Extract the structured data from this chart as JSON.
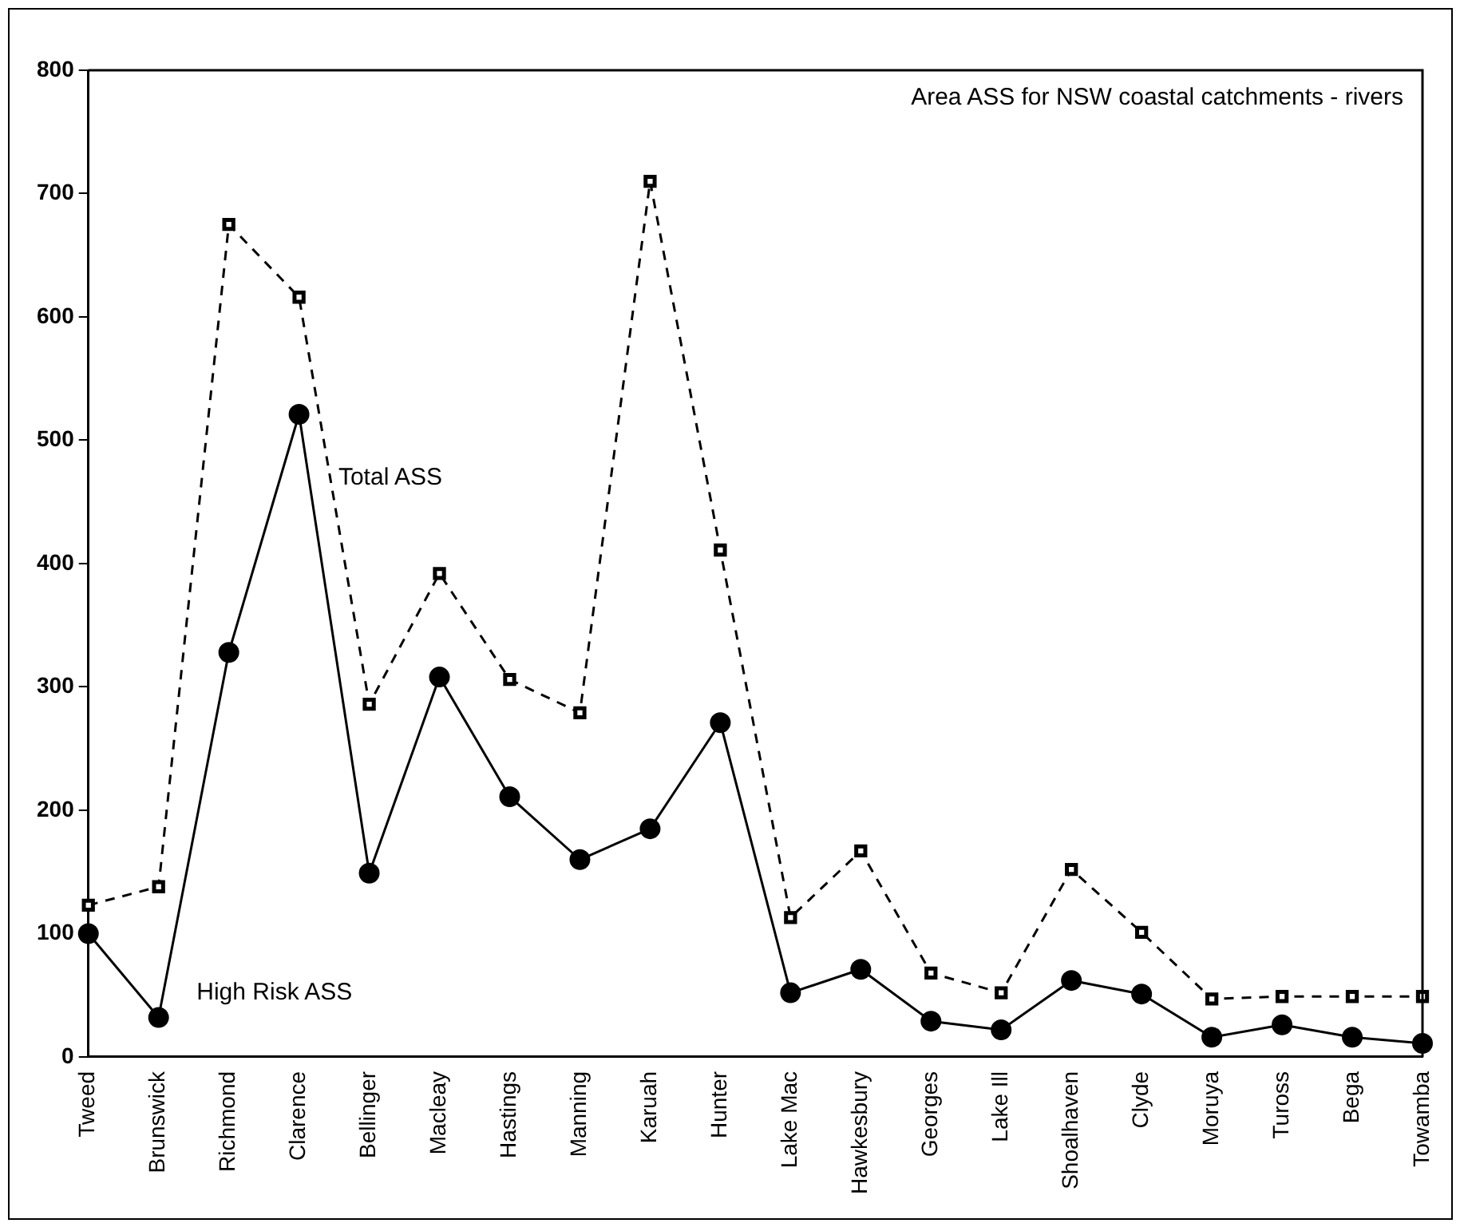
{
  "chart_data": {
    "type": "line",
    "title": "Area ASS for NSW coastal catchments - rivers",
    "categories": [
      "Tweed",
      "Brunswick",
      "Richmond",
      "Clarence",
      "Bellinger",
      "Macleay",
      "Hastings",
      "Manning",
      "Karuah",
      "Hunter",
      "Lake Mac",
      "Hawkesbury",
      "Georges",
      "Lake Ill",
      "Shoalhaven",
      "Clyde",
      "Moruya",
      "Tuross",
      "Bega",
      "Towamba"
    ],
    "series": [
      {
        "name": "Total ASS",
        "color": "#000000",
        "marker": "square",
        "line_style": "dashed",
        "values": [
          123,
          138,
          675,
          616,
          286,
          392,
          306,
          279,
          710,
          411,
          113,
          167,
          68,
          52,
          152,
          101,
          47,
          49,
          49,
          49
        ]
      },
      {
        "name": "High Risk ASS",
        "color": "#000000",
        "marker": "circle",
        "line_style": "solid",
        "values": [
          100,
          32,
          328,
          521,
          149,
          308,
          211,
          160,
          185,
          271,
          52,
          71,
          29,
          22,
          62,
          51,
          16,
          26,
          16,
          11
        ]
      }
    ],
    "ylim": [
      0,
      800
    ],
    "yticks": [
      0,
      100,
      200,
      300,
      400,
      500,
      600,
      700,
      800
    ],
    "grid": false,
    "legend": false
  }
}
